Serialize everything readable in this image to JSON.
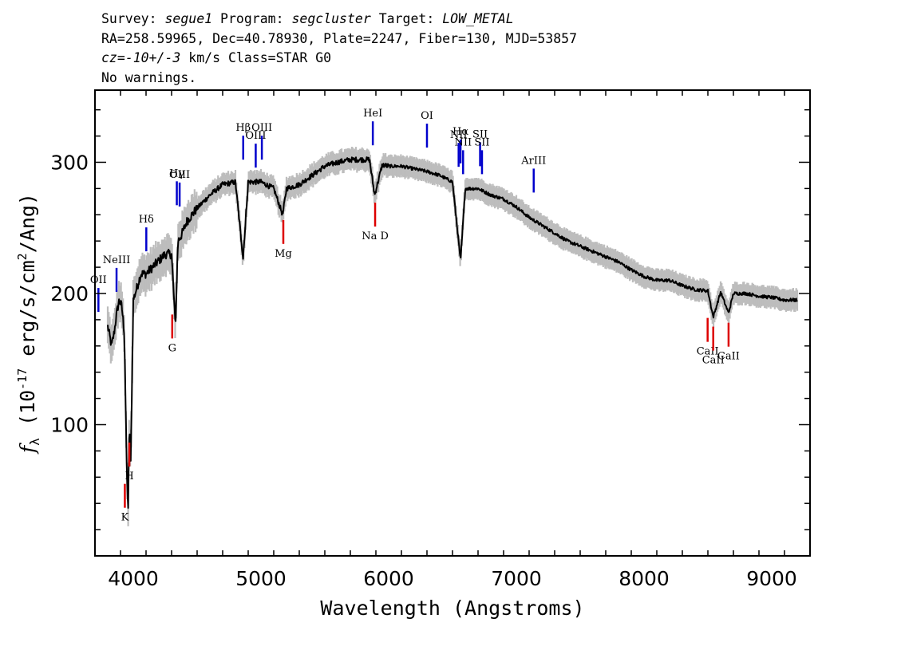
{
  "header": {
    "survey_label": "Survey:",
    "survey": "segue1",
    "program_label": "Program:",
    "program": "segcluster",
    "target_label": "Target:",
    "target": "LOW_METAL",
    "line2": "RA=258.59965, Dec=40.78930, Plate=2247, Fiber=130, MJD=53857",
    "cz_label": "cz=",
    "cz_value": "-10+/-3",
    "cz_rest": " km/s Class=STAR G0",
    "line4": "No warnings."
  },
  "chart_data": {
    "type": "line",
    "title": "",
    "xlabel": "Wavelength (Angstroms)",
    "ylabel_parts": [
      "f",
      "λ",
      " (10",
      "-17",
      " erg/s/cm",
      "2",
      "/Ang)"
    ],
    "xlim": [
      3700,
      9300
    ],
    "ylim": [
      0,
      355
    ],
    "x_ticks": [
      4000,
      5000,
      6000,
      7000,
      8000,
      9000
    ],
    "y_ticks": [
      100,
      200,
      300
    ],
    "grid": false,
    "series": [
      {
        "x": [
          3800,
          3830,
          3850,
          3870,
          3890,
          3910,
          3930,
          3950,
          3960,
          3970,
          3980,
          4000,
          4030,
          4060,
          4100,
          4150,
          4200,
          4250,
          4300,
          4330,
          4350,
          4380,
          4420,
          4500,
          4600,
          4700,
          4800,
          4860,
          4900,
          5000,
          5100,
          5170,
          5200,
          5300,
          5400,
          5500,
          5600,
          5700,
          5800,
          5850,
          5890,
          5950,
          6000,
          6100,
          6200,
          6300,
          6400,
          6500,
          6563,
          6600,
          6700,
          6800,
          6900,
          7000,
          7100,
          7200,
          7300,
          7400,
          7500,
          7600,
          7700,
          7800,
          7900,
          8000,
          8100,
          8200,
          8300,
          8400,
          8500,
          8542,
          8600,
          8662,
          8700,
          8800,
          8900,
          9000,
          9100,
          9200
        ],
        "y": [
          175,
          160,
          170,
          185,
          195,
          190,
          170,
          60,
          37,
          100,
          70,
          195,
          205,
          215,
          215,
          220,
          225,
          230,
          230,
          175,
          240,
          245,
          255,
          265,
          275,
          283,
          285,
          227,
          285,
          285,
          280,
          260,
          280,
          283,
          290,
          297,
          300,
          302,
          302,
          302,
          275,
          298,
          297,
          297,
          295,
          293,
          290,
          285,
          225,
          280,
          280,
          275,
          272,
          266,
          258,
          252,
          246,
          240,
          236,
          232,
          228,
          224,
          218,
          213,
          210,
          210,
          206,
          203,
          202,
          182,
          201,
          185,
          200,
          200,
          198,
          197,
          195,
          195
        ]
      }
    ],
    "emission_lines": [
      {
        "label": "OII",
        "wave": 3727
      },
      {
        "label": "NeIII",
        "wave": 3869
      },
      {
        "label": "Hδ",
        "wave": 4102
      },
      {
        "label": "Hγ",
        "wave": 4341
      },
      {
        "label": "OIII",
        "wave": 4363
      },
      {
        "label": "Hβ",
        "wave": 4861
      },
      {
        "label": "OIII",
        "wave": 4959
      },
      {
        "label": "OIII",
        "wave": 5007
      },
      {
        "label": "HeI",
        "wave": 5876
      },
      {
        "label": "OI",
        "wave": 6300
      },
      {
        "label": "NII",
        "wave": 6548
      },
      {
        "label": "Hα",
        "wave": 6563
      },
      {
        "label": "NII",
        "wave": 6583
      },
      {
        "label": "SII",
        "wave": 6716
      },
      {
        "label": "SII",
        "wave": 6731
      },
      {
        "label": "ArIII",
        "wave": 7136
      }
    ],
    "absorption_lines": [
      {
        "label": "K",
        "wave": 3934
      },
      {
        "label": "H",
        "wave": 3969
      },
      {
        "label": "G",
        "wave": 4305
      },
      {
        "label": "Mg",
        "wave": 5175
      },
      {
        "label": "Na D",
        "wave": 5894
      },
      {
        "label": "CaII",
        "wave": 8498
      },
      {
        "label": "CaII",
        "wave": 8542
      },
      {
        "label": "CaII",
        "wave": 8662
      }
    ],
    "colors": {
      "spectrum": "#000000",
      "error_band": "#bdbdbd",
      "emission": "#0000cc",
      "absorption": "#dd0000"
    }
  }
}
